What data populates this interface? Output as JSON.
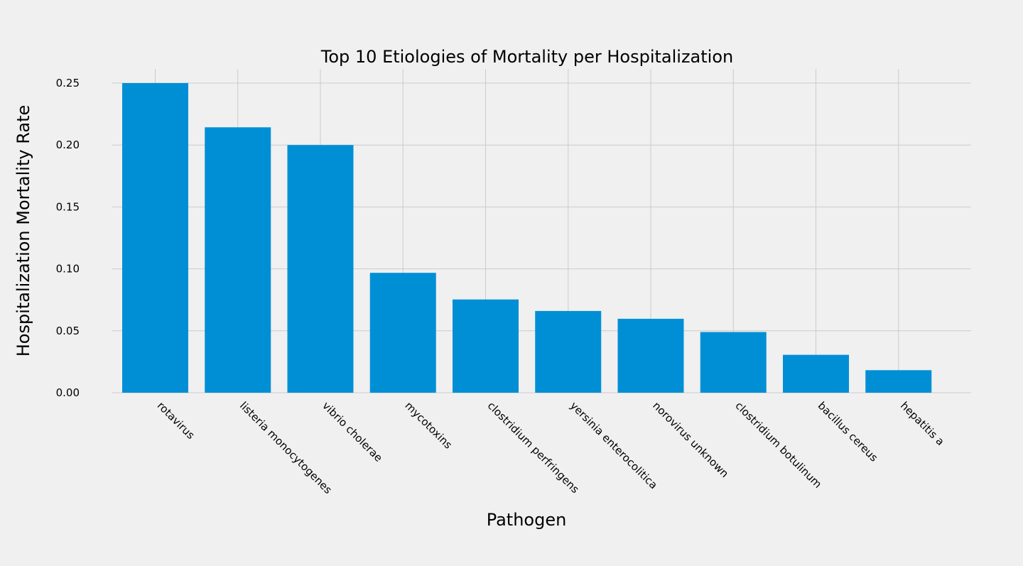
{
  "chart_data": {
    "type": "bar",
    "title": "Top 10 Etiologies of Mortality per Hospitalization",
    "xlabel": "Pathogen",
    "ylabel": "Hospitalization Mortality Rate",
    "categories": [
      "rotavirus",
      "listeria monocytogenes",
      "vibrio cholerae",
      "mycotoxins",
      "clostridium perfringens",
      "yersinia enterocolitica",
      "norovirus unknown",
      "clostridium botulinum",
      "bacillus cereus",
      "hepatitis a"
    ],
    "values": [
      0.25,
      0.2143,
      0.2,
      0.0968,
      0.0753,
      0.066,
      0.0597,
      0.049,
      0.0306,
      0.0182
    ],
    "ylim": [
      0,
      0.26
    ],
    "yticks": [
      "0.00",
      "0.05",
      "0.10",
      "0.15",
      "0.20",
      "0.25"
    ],
    "grid": true,
    "colors": {
      "bar": "#008fd5",
      "background": "#f0f0f0",
      "grid": "#cbcbcb"
    }
  }
}
